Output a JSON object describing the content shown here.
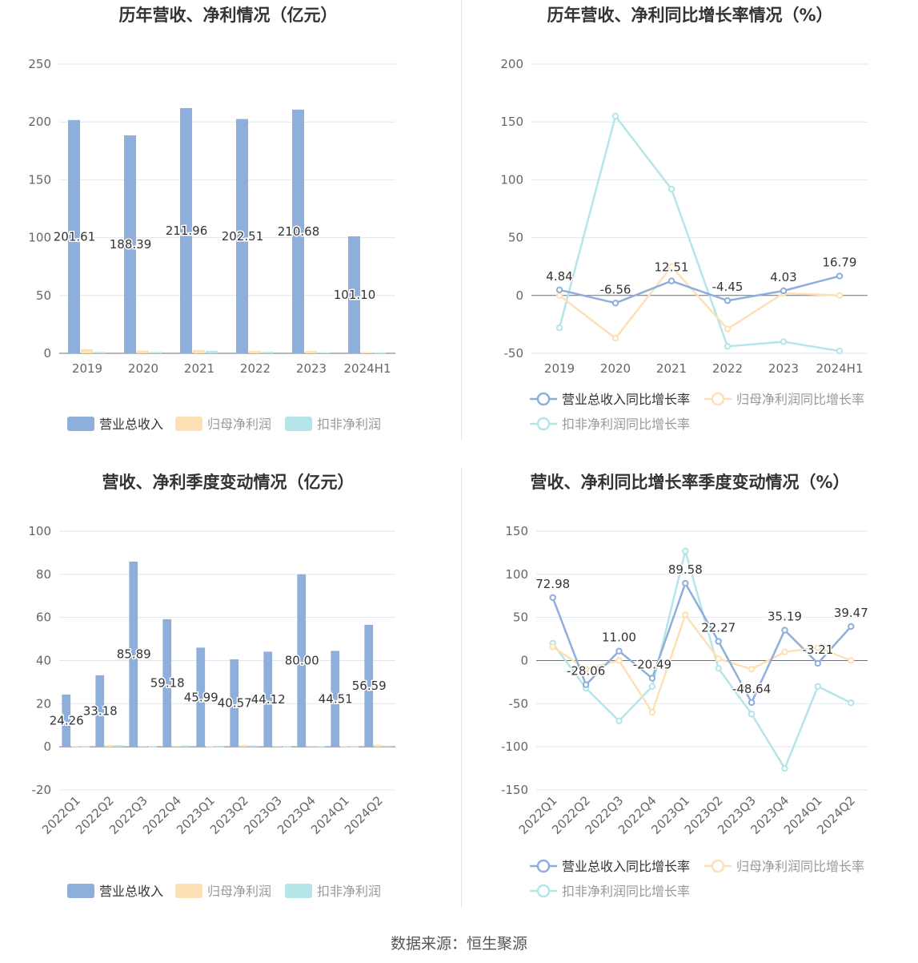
{
  "footer": {
    "source": "数据来源：恒生聚源"
  },
  "colors": {
    "revenue": "#8eaedc",
    "parent_net": "#fde0b4",
    "deducted_net": "#b5e5e8",
    "axis": "#666666",
    "grid": "#e0e6f1",
    "text": "#333333"
  },
  "chart_data": [
    {
      "type": "bar",
      "title": "历年营收、净利情况（亿元）",
      "categories": [
        "2019",
        "2020",
        "2021",
        "2022",
        "2023",
        "2024H1"
      ],
      "ylim": [
        0,
        250
      ],
      "yticks": [
        "0",
        "50",
        "100",
        "150",
        "200",
        "250"
      ],
      "series": [
        {
          "name": "营业总收入",
          "values": [
            201.61,
            188.39,
            211.96,
            202.51,
            210.68,
            101.1
          ],
          "labels": [
            "201.61",
            "188.39",
            "211.96",
            "202.51",
            "210.68",
            "101.10"
          ]
        },
        {
          "name": "归母净利润",
          "values": [
            3.6,
            2.3,
            2.9,
            2.1,
            2.1,
            1.0
          ]
        },
        {
          "name": "扣非净利润",
          "values": [
            1.2,
            1.1,
            2.0,
            1.2,
            0.8,
            0.6
          ]
        }
      ],
      "legend": "bottom",
      "grid": true
    },
    {
      "type": "line",
      "title": "历年营收、净利同比增长率情况（%）",
      "categories": [
        "2019",
        "2020",
        "2021",
        "2022",
        "2023",
        "2024H1"
      ],
      "ylim": [
        -50,
        200
      ],
      "yticks": [
        "-50",
        "0",
        "50",
        "100",
        "150",
        "200"
      ],
      "series": [
        {
          "name": "营业总收入同比增长率",
          "values": [
            4.84,
            -6.56,
            12.51,
            -4.45,
            4.03,
            16.79
          ],
          "labels": [
            "4.84",
            "-6.56",
            "12.51",
            "-4.45",
            "4.03",
            "16.79"
          ]
        },
        {
          "name": "归母净利润同比增长率",
          "values": [
            0,
            -37,
            25,
            -29,
            2,
            0
          ]
        },
        {
          "name": "扣非净利润同比增长率",
          "values": [
            -28,
            155,
            92,
            -44,
            -40,
            -48
          ]
        }
      ],
      "legend": "bottom",
      "grid": true
    },
    {
      "type": "bar",
      "title": "营收、净利季度变动情况（亿元）",
      "categories": [
        "2022Q1",
        "2022Q2",
        "2022Q3",
        "2022Q4",
        "2023Q1",
        "2023Q2",
        "2023Q3",
        "2023Q4",
        "2024Q1",
        "2024Q2"
      ],
      "ylim": [
        -20,
        100
      ],
      "yticks": [
        "-20",
        "0",
        "20",
        "40",
        "60",
        "80",
        "100"
      ],
      "series": [
        {
          "name": "营业总收入",
          "values": [
            24.26,
            33.18,
            85.89,
            59.18,
            45.99,
            40.57,
            44.12,
            80.0,
            44.51,
            56.59
          ],
          "labels": [
            "24.26",
            "33.18",
            "85.89",
            "59.18",
            "45.99",
            "40.57",
            "44.12",
            "80.00",
            "44.51",
            "56.59"
          ]
        },
        {
          "name": "归母净利润",
          "values": [
            0.3,
            0.8,
            0.4,
            0.5,
            0.3,
            0.8,
            0.4,
            0.5,
            0.3,
            0.9
          ]
        },
        {
          "name": "扣非净利润",
          "values": [
            0.2,
            0.7,
            0.2,
            0.6,
            0.1,
            0.6,
            0.2,
            0.3,
            0.2,
            0.5
          ]
        }
      ],
      "legend": "bottom",
      "grid": true
    },
    {
      "type": "line",
      "title": "营收、净利同比增长率季度变动情况（%）",
      "categories": [
        "2022Q1",
        "2022Q2",
        "2022Q3",
        "2022Q4",
        "2023Q1",
        "2023Q2",
        "2023Q3",
        "2023Q4",
        "2024Q1",
        "2024Q2"
      ],
      "ylim": [
        -150,
        150
      ],
      "yticks": [
        "-150",
        "-100",
        "-50",
        "0",
        "50",
        "100",
        "150"
      ],
      "series": [
        {
          "name": "营业总收入同比增长率",
          "values": [
            72.98,
            -28.06,
            11.0,
            -20.49,
            89.58,
            22.27,
            -48.64,
            35.19,
            -3.21,
            39.47
          ],
          "labels": [
            "72.98",
            "-28.06",
            "11.00",
            "-20.49",
            "89.58",
            "22.27",
            "-48.64",
            "35.19",
            "-3.21",
            "39.47"
          ]
        },
        {
          "name": "归母净利润同比增长率",
          "values": [
            16,
            -10,
            0,
            -60,
            53,
            2,
            -10,
            10,
            15,
            0
          ]
        },
        {
          "name": "扣非净利润同比增长率",
          "values": [
            20,
            -32,
            -70,
            -30,
            127,
            -9,
            -62,
            -125,
            -30,
            -49
          ]
        }
      ],
      "legend": "bottom",
      "grid": true
    }
  ]
}
